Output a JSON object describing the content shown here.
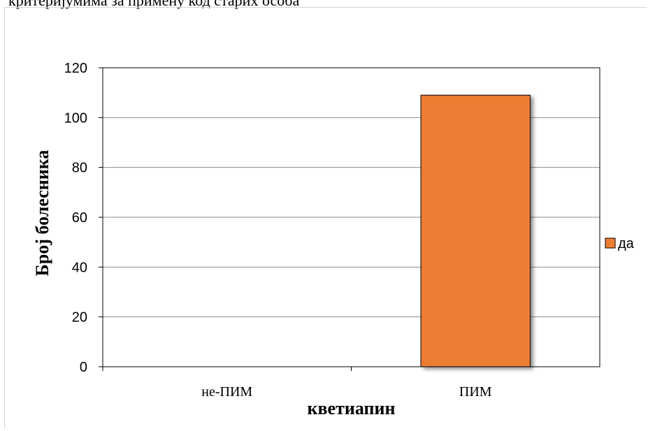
{
  "page": {
    "top_text": "критеријумима за примену код старих особа"
  },
  "chart_data": {
    "type": "bar",
    "categories": [
      "не-ПИМ",
      "ПИМ"
    ],
    "series": [
      {
        "name": "да",
        "values": [
          0,
          109
        ],
        "color": "#ED7D31"
      }
    ],
    "xlabel": "кветиапин",
    "ylabel": "Број болесника",
    "ylim": [
      0,
      120
    ],
    "yticks": [
      0,
      20,
      40,
      60,
      80,
      100,
      120
    ],
    "grid": true,
    "legend_position": "right"
  }
}
